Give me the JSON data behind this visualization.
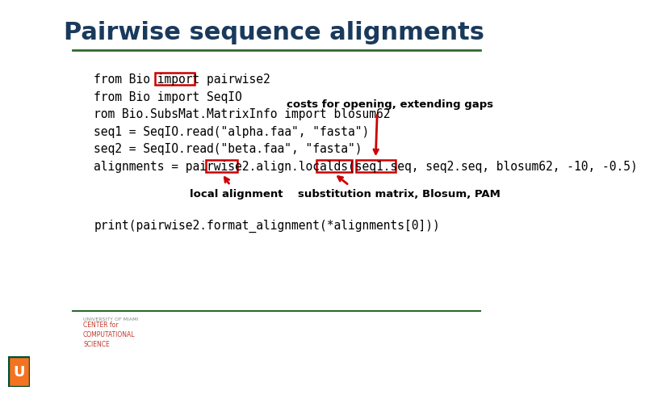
{
  "title": "Pairwise sequence alignments",
  "title_color": "#1a3a5c",
  "title_fontsize": 22,
  "bg_color": "#ffffff",
  "separator_color": "#2d6a2d",
  "code_lines": [
    "from Bio import pairwise2",
    "from Bio import SeqIO",
    "rom Bio.SubsMat.MatrixInfo import blosum62",
    "seq1 = SeqIO.read(\"alpha.faa\", \"fasta\")",
    "seq2 = SeqIO.read(\"beta.faa\", \"fasta\")",
    "alignments = pairwise2.align.localds(seq1.seq, seq2.seq, blosum62, -10, -0.5)"
  ],
  "code_fontsize": 10.5,
  "code_color": "#000000",
  "print_line": "print(pairwise2.format_alignment(*alignments[0]))",
  "box_color": "#cc0000",
  "annotation_color": "#000000",
  "annotation_fontsize": 9.5,
  "footer_line_color": "#2d6a2d",
  "footer_text1": "UNIVERSITY OF MIAMI",
  "footer_text2": "CENTER for\nCOMPUTATIONAL\nSCIENCE",
  "footer_color1": "#888888",
  "footer_color2": "#c0392b"
}
